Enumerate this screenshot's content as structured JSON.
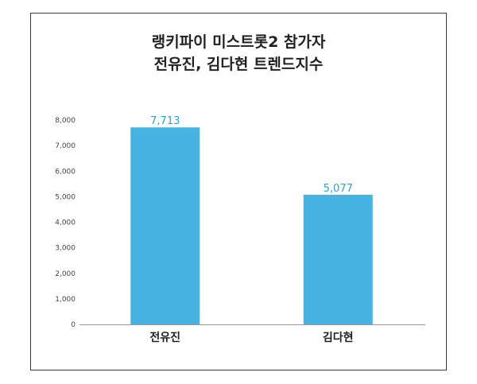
{
  "chart_data": {
    "type": "bar",
    "title_lines": [
      "랭키파이 미스트롯2 참가자",
      "전유진, 김다현 트렌드지수"
    ],
    "categories": [
      "전유진",
      "김다현"
    ],
    "values": [
      7713,
      5077
    ],
    "data_labels": [
      "7,713",
      "5,077"
    ],
    "yticks": [
      0,
      1000,
      2000,
      3000,
      4000,
      5000,
      6000,
      7000,
      8000
    ],
    "ytick_labels": [
      "0",
      "1,000",
      "2,000",
      "3,000",
      "4,000",
      "5,000",
      "6,000",
      "7,000",
      "8,000"
    ],
    "ylim": [
      0,
      8000
    ],
    "grid": false,
    "bar_color": "#47b3e3",
    "xlabel": "",
    "ylabel": ""
  }
}
